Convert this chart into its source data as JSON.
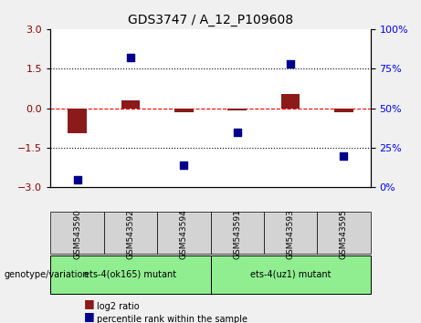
{
  "title": "GDS3747 / A_12_P109608",
  "samples": [
    "GSM543590",
    "GSM543592",
    "GSM543594",
    "GSM543591",
    "GSM543593",
    "GSM543595"
  ],
  "log2_ratio": [
    -0.95,
    0.3,
    -0.15,
    -0.08,
    0.55,
    -0.15
  ],
  "percentile_rank": [
    5,
    82,
    14,
    35,
    78,
    20
  ],
  "groups": [
    {
      "label": "ets-4(ok165) mutant",
      "samples": [
        0,
        1,
        2
      ],
      "color": "#90EE90"
    },
    {
      "label": "ets-4(uz1) mutant",
      "samples": [
        3,
        4,
        5
      ],
      "color": "#90EE90"
    }
  ],
  "bar_color": "#8B1A1A",
  "scatter_color": "#00008B",
  "ylim_left": [
    -3,
    3
  ],
  "ylim_right": [
    0,
    100
  ],
  "yticks_left": [
    -3,
    -1.5,
    0,
    1.5,
    3
  ],
  "yticks_right": [
    0,
    25,
    50,
    75,
    100
  ],
  "hlines": [
    1.5,
    0,
    -1.5
  ],
  "hline_styles": [
    "dotted",
    "dashed",
    "dotted"
  ],
  "hline_colors": [
    "black",
    "red",
    "black"
  ],
  "background_color": "#f0f0f0",
  "plot_bg": "#ffffff",
  "legend_items": [
    {
      "label": "log2 ratio",
      "color": "#8B1A1A"
    },
    {
      "label": "percentile rank within the sample",
      "color": "#00008B"
    }
  ]
}
